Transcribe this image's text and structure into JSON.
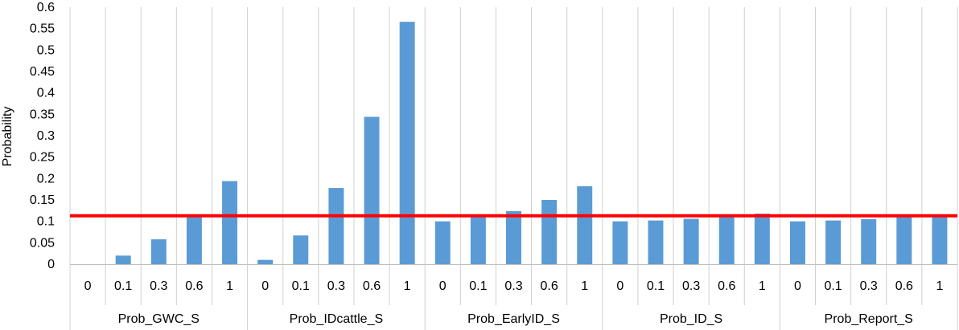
{
  "chart_data": {
    "type": "bar",
    "title": "",
    "xlabel": "",
    "ylabel": "Probability",
    "ylim": [
      0,
      0.6
    ],
    "y_ticks": [
      "0",
      "0.05",
      "0.1",
      "0.15",
      "0.2",
      "0.25",
      "0.3",
      "0.35",
      "0.4",
      "0.45",
      "0.5",
      "0.55",
      "0.6"
    ],
    "grid": "vertical lines at category boundaries",
    "legend": "none",
    "groups": [
      {
        "name": "Prob_GWC_S",
        "categories": [
          "0",
          "0.1",
          "0.3",
          "0.6",
          "1"
        ],
        "values": [
          0.0,
          0.02,
          0.058,
          0.112,
          0.194
        ]
      },
      {
        "name": "Prob_IDcattle_S",
        "categories": [
          "0",
          "0.1",
          "0.3",
          "0.6",
          "1"
        ],
        "values": [
          0.01,
          0.067,
          0.178,
          0.344,
          0.566
        ]
      },
      {
        "name": "Prob_EarlyID_S",
        "categories": [
          "0",
          "0.1",
          "0.3",
          "0.6",
          "1"
        ],
        "values": [
          0.1,
          0.112,
          0.124,
          0.15,
          0.182
        ]
      },
      {
        "name": "Prob_ID_S",
        "categories": [
          "0",
          "0.1",
          "0.3",
          "0.6",
          "1"
        ],
        "values": [
          0.1,
          0.102,
          0.106,
          0.112,
          0.118
        ]
      },
      {
        "name": "Prob_Report_S",
        "categories": [
          "0",
          "0.1",
          "0.3",
          "0.6",
          "1"
        ],
        "values": [
          0.1,
          0.102,
          0.105,
          0.11,
          0.114
        ]
      }
    ],
    "reference_line": {
      "value": 0.113,
      "color": "#ff0000"
    },
    "bar_color": "#5b9bd5",
    "grid_color": "#d0d0d0"
  }
}
